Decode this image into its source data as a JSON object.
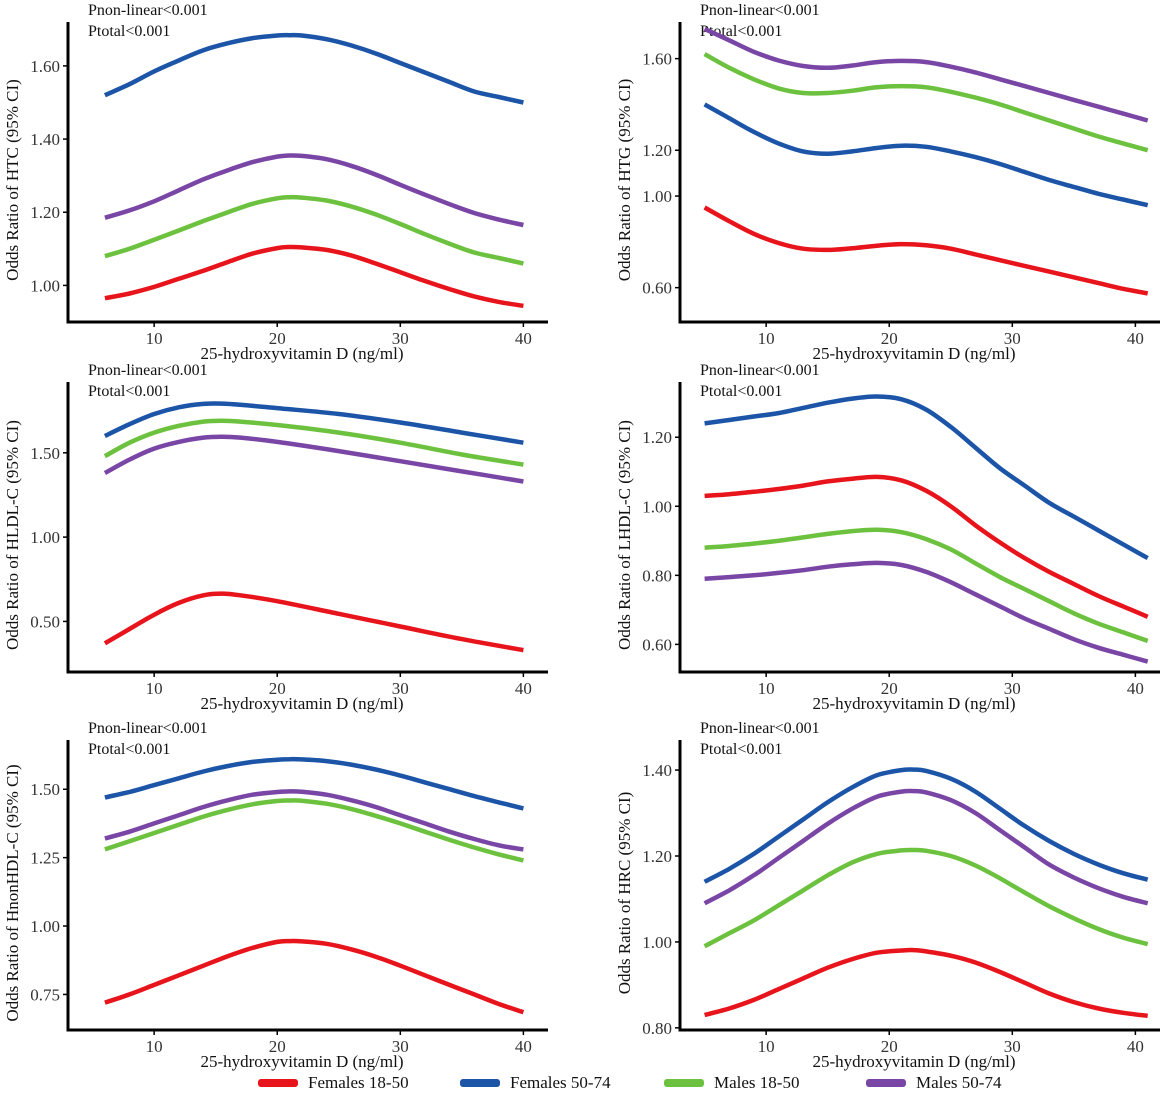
{
  "figure_title": "",
  "colors": {
    "Females 18-50": "#e8141c",
    "Females 50-74": "#1c55a7",
    "Males 18-50": "#6cc23f",
    "Males 50-74": "#7a46a6",
    "axis": "#000000"
  },
  "legend": [
    {
      "label": "Females 18-50",
      "color": "#e8141c"
    },
    {
      "label": "Females 50-74",
      "color": "#1c55a7"
    },
    {
      "label": "Males 18-50",
      "color": "#6cc23f"
    },
    {
      "label": "Males 50-74",
      "color": "#7a46a6"
    }
  ],
  "chart_data": [
    {
      "type": "line",
      "ylabel": "Odds Ratio of HTC (95% CI)",
      "xlabel": "25-hydroxyvitamin D (ng/ml)",
      "xticks": [
        10,
        20,
        30,
        40
      ],
      "yticks": [
        1.0,
        1.2,
        1.4,
        1.6
      ],
      "ytick_labels": [
        "1.00",
        "1.20",
        "1.40",
        "1.60"
      ],
      "xlim": [
        3,
        42
      ],
      "ylim": [
        0.9,
        1.72
      ],
      "annotations": [
        "Pnon-linear<0.001",
        "Ptotal<0.001"
      ],
      "x": [
        6,
        8,
        10,
        12,
        14,
        16,
        18,
        20,
        21,
        22,
        24,
        26,
        28,
        30,
        32,
        34,
        36,
        38,
        40
      ],
      "series": [
        {
          "name": "Females 50-74",
          "values": [
            1.52,
            1.55,
            1.585,
            1.615,
            1.643,
            1.662,
            1.676,
            1.683,
            1.684,
            1.683,
            1.673,
            1.656,
            1.634,
            1.608,
            1.582,
            1.556,
            1.53,
            1.515,
            1.5
          ]
        },
        {
          "name": "Males 50-74",
          "values": [
            1.185,
            1.205,
            1.23,
            1.26,
            1.29,
            1.315,
            1.337,
            1.352,
            1.355,
            1.354,
            1.345,
            1.327,
            1.303,
            1.275,
            1.248,
            1.222,
            1.198,
            1.18,
            1.165
          ]
        },
        {
          "name": "Males 18-50",
          "values": [
            1.08,
            1.1,
            1.125,
            1.15,
            1.176,
            1.2,
            1.223,
            1.238,
            1.241,
            1.24,
            1.232,
            1.216,
            1.194,
            1.168,
            1.14,
            1.114,
            1.09,
            1.075,
            1.06
          ]
        },
        {
          "name": "Females 18-50",
          "values": [
            0.965,
            0.978,
            0.996,
            1.018,
            1.04,
            1.064,
            1.087,
            1.102,
            1.105,
            1.104,
            1.097,
            1.082,
            1.06,
            1.036,
            1.012,
            0.99,
            0.97,
            0.955,
            0.944
          ]
        }
      ]
    },
    {
      "type": "line",
      "ylabel": "Odds Ratio of HTG (95% CI)",
      "xlabel": "25-hydroxyvitamin D (ng/ml)",
      "xticks": [
        10,
        20,
        30,
        40
      ],
      "yticks": [
        0.6,
        1.0,
        1.2,
        1.6
      ],
      "ytick_labels": [
        "0.60",
        "1.00",
        "1.20",
        "1.60"
      ],
      "xlim": [
        3,
        42
      ],
      "ylim": [
        0.45,
        1.76
      ],
      "annotations": [
        "Pnon-linear<0.001",
        "Ptotal<0.001"
      ],
      "x": [
        5,
        7,
        9,
        11,
        13,
        15,
        17,
        19,
        21,
        23,
        25,
        27,
        29,
        31,
        33,
        35,
        37,
        39,
        41
      ],
      "series": [
        {
          "name": "Males 50-74",
          "values": [
            1.73,
            1.68,
            1.63,
            1.592,
            1.568,
            1.56,
            1.57,
            1.585,
            1.59,
            1.585,
            1.565,
            1.54,
            1.51,
            1.48,
            1.45,
            1.42,
            1.39,
            1.36,
            1.33
          ]
        },
        {
          "name": "Males 18-50",
          "values": [
            1.62,
            1.56,
            1.51,
            1.47,
            1.45,
            1.45,
            1.46,
            1.475,
            1.48,
            1.475,
            1.455,
            1.43,
            1.4,
            1.365,
            1.33,
            1.295,
            1.26,
            1.23,
            1.2
          ]
        },
        {
          "name": "Females 50-74",
          "values": [
            1.4,
            1.34,
            1.28,
            1.23,
            1.195,
            1.185,
            1.195,
            1.21,
            1.22,
            1.215,
            1.195,
            1.17,
            1.14,
            1.105,
            1.07,
            1.04,
            1.01,
            0.985,
            0.96
          ]
        },
        {
          "name": "Females 18-50",
          "values": [
            0.95,
            0.89,
            0.835,
            0.795,
            0.77,
            0.765,
            0.772,
            0.783,
            0.79,
            0.785,
            0.77,
            0.745,
            0.72,
            0.695,
            0.67,
            0.645,
            0.62,
            0.595,
            0.575
          ]
        }
      ]
    },
    {
      "type": "line",
      "ylabel": "Odds Ratio of HLDL-C (95% CI)",
      "xlabel": "25-hydroxyvitamin D (ng/ml)",
      "xticks": [
        10,
        20,
        30,
        40
      ],
      "yticks": [
        0.5,
        1.0,
        1.5
      ],
      "ytick_labels": [
        "0.50",
        "1.00",
        "1.50"
      ],
      "xlim": [
        3,
        42
      ],
      "ylim": [
        0.2,
        1.92
      ],
      "annotations": [
        "Pnon-linear<0.001",
        "Ptotal<0.001"
      ],
      "x": [
        6,
        8,
        10,
        12,
        14,
        15.5,
        17,
        20,
        25,
        30,
        35,
        40
      ],
      "series": [
        {
          "name": "Females 50-74",
          "values": [
            1.6,
            1.67,
            1.73,
            1.77,
            1.79,
            1.792,
            1.785,
            1.765,
            1.73,
            1.68,
            1.62,
            1.56
          ]
        },
        {
          "name": "Males 18-50",
          "values": [
            1.48,
            1.56,
            1.62,
            1.66,
            1.685,
            1.69,
            1.685,
            1.665,
            1.62,
            1.56,
            1.49,
            1.43
          ]
        },
        {
          "name": "Males 50-74",
          "values": [
            1.38,
            1.46,
            1.525,
            1.565,
            1.59,
            1.595,
            1.59,
            1.565,
            1.51,
            1.45,
            1.39,
            1.33
          ]
        },
        {
          "name": "Females 18-50",
          "values": [
            0.37,
            0.455,
            0.54,
            0.61,
            0.655,
            0.665,
            0.655,
            0.62,
            0.545,
            0.47,
            0.395,
            0.33
          ]
        }
      ]
    },
    {
      "type": "line",
      "ylabel": "Odds Ratio of LHDL-C (95% CI)",
      "xlabel": "25-hydroxyvitamin D (ng/ml)",
      "xticks": [
        10,
        20,
        30,
        40
      ],
      "yticks": [
        0.6,
        0.8,
        1.0,
        1.2
      ],
      "ytick_labels": [
        "0.60",
        "0.80",
        "1.00",
        "1.20"
      ],
      "xlim": [
        3,
        42
      ],
      "ylim": [
        0.52,
        1.36
      ],
      "annotations": [
        "Pnon-linear<0.001",
        "Ptotal<0.001"
      ],
      "x": [
        5,
        7,
        9,
        11,
        13,
        15,
        17,
        19,
        21,
        23,
        25,
        27,
        29,
        31,
        33,
        35,
        37,
        39,
        41
      ],
      "series": [
        {
          "name": "Females 50-74",
          "values": [
            1.24,
            1.25,
            1.26,
            1.27,
            1.285,
            1.3,
            1.312,
            1.318,
            1.31,
            1.28,
            1.23,
            1.17,
            1.11,
            1.06,
            1.01,
            0.97,
            0.93,
            0.89,
            0.85
          ]
        },
        {
          "name": "Females 18-50",
          "values": [
            1.03,
            1.035,
            1.042,
            1.05,
            1.06,
            1.072,
            1.08,
            1.085,
            1.075,
            1.045,
            1.0,
            0.945,
            0.895,
            0.85,
            0.81,
            0.775,
            0.74,
            0.71,
            0.68
          ]
        },
        {
          "name": "Males 18-50",
          "values": [
            0.88,
            0.885,
            0.892,
            0.9,
            0.91,
            0.92,
            0.928,
            0.932,
            0.925,
            0.905,
            0.875,
            0.835,
            0.795,
            0.76,
            0.725,
            0.69,
            0.66,
            0.635,
            0.61
          ]
        },
        {
          "name": "Males 50-74",
          "values": [
            0.79,
            0.795,
            0.8,
            0.807,
            0.815,
            0.825,
            0.832,
            0.836,
            0.83,
            0.81,
            0.78,
            0.745,
            0.71,
            0.675,
            0.645,
            0.615,
            0.59,
            0.57,
            0.55
          ]
        }
      ]
    },
    {
      "type": "line",
      "ylabel": "Odds Ratio of HnonHDL-C (95% CI)",
      "xlabel": "25-hydroxyvitamin D (ng/ml)",
      "xticks": [
        10,
        20,
        30,
        40
      ],
      "yticks": [
        0.75,
        1.0,
        1.25,
        1.5
      ],
      "ytick_labels": [
        "0.75",
        "1.00",
        "1.25",
        "1.50"
      ],
      "xlim": [
        3,
        42
      ],
      "ylim": [
        0.62,
        1.68
      ],
      "annotations": [
        "Pnon-linear<0.001",
        "Ptotal<0.001"
      ],
      "x": [
        6,
        8,
        10,
        12,
        14,
        16,
        18,
        20,
        21,
        22,
        24,
        26,
        28,
        30,
        32,
        34,
        36,
        38,
        40
      ],
      "series": [
        {
          "name": "Females 50-74",
          "values": [
            1.47,
            1.49,
            1.515,
            1.54,
            1.565,
            1.585,
            1.6,
            1.608,
            1.61,
            1.609,
            1.603,
            1.59,
            1.572,
            1.55,
            1.525,
            1.5,
            1.475,
            1.452,
            1.43
          ]
        },
        {
          "name": "Males 50-74",
          "values": [
            1.32,
            1.345,
            1.375,
            1.405,
            1.435,
            1.46,
            1.48,
            1.49,
            1.492,
            1.491,
            1.48,
            1.46,
            1.435,
            1.405,
            1.375,
            1.345,
            1.318,
            1.295,
            1.28
          ]
        },
        {
          "name": "Males 18-50",
          "values": [
            1.28,
            1.31,
            1.34,
            1.37,
            1.4,
            1.425,
            1.445,
            1.457,
            1.459,
            1.458,
            1.447,
            1.428,
            1.403,
            1.375,
            1.345,
            1.315,
            1.287,
            1.262,
            1.24
          ]
        },
        {
          "name": "Females 18-50",
          "values": [
            0.72,
            0.75,
            0.785,
            0.82,
            0.855,
            0.89,
            0.92,
            0.942,
            0.945,
            0.944,
            0.935,
            0.915,
            0.888,
            0.855,
            0.82,
            0.785,
            0.75,
            0.715,
            0.685
          ]
        }
      ]
    },
    {
      "type": "line",
      "ylabel": "Odds Ratio of HRC (95% CI)",
      "xlabel": "25-hydroxyvitamin D (ng/ml)",
      "xticks": [
        10,
        20,
        30,
        40
      ],
      "yticks": [
        0.8,
        1.0,
        1.2,
        1.4
      ],
      "ytick_labels": [
        "0.80",
        "1.00",
        "1.20",
        "1.40"
      ],
      "xlim": [
        3,
        42
      ],
      "ylim": [
        0.795,
        1.47
      ],
      "annotations": [
        "Pnon-linear<0.001",
        "Ptotal<0.001"
      ],
      "x": [
        5,
        7,
        9,
        11,
        13,
        15,
        17,
        19,
        21,
        22,
        23,
        25,
        27,
        29,
        31,
        33,
        35,
        37,
        39,
        41
      ],
      "series": [
        {
          "name": "Females 50-74",
          "values": [
            1.14,
            1.17,
            1.205,
            1.245,
            1.285,
            1.325,
            1.36,
            1.388,
            1.4,
            1.401,
            1.398,
            1.38,
            1.35,
            1.31,
            1.27,
            1.235,
            1.205,
            1.18,
            1.16,
            1.145
          ]
        },
        {
          "name": "Males 50-74",
          "values": [
            1.09,
            1.12,
            1.155,
            1.195,
            1.235,
            1.275,
            1.31,
            1.338,
            1.35,
            1.351,
            1.348,
            1.33,
            1.3,
            1.26,
            1.22,
            1.18,
            1.15,
            1.125,
            1.105,
            1.09
          ]
        },
        {
          "name": "Males 18-50",
          "values": [
            0.99,
            1.02,
            1.05,
            1.085,
            1.12,
            1.155,
            1.185,
            1.205,
            1.213,
            1.214,
            1.212,
            1.2,
            1.178,
            1.148,
            1.115,
            1.083,
            1.055,
            1.03,
            1.01,
            0.995
          ]
        },
        {
          "name": "Females 18-50",
          "values": [
            0.83,
            0.845,
            0.865,
            0.89,
            0.915,
            0.94,
            0.96,
            0.975,
            0.98,
            0.981,
            0.978,
            0.968,
            0.952,
            0.93,
            0.905,
            0.88,
            0.86,
            0.845,
            0.835,
            0.828
          ]
        }
      ]
    }
  ]
}
